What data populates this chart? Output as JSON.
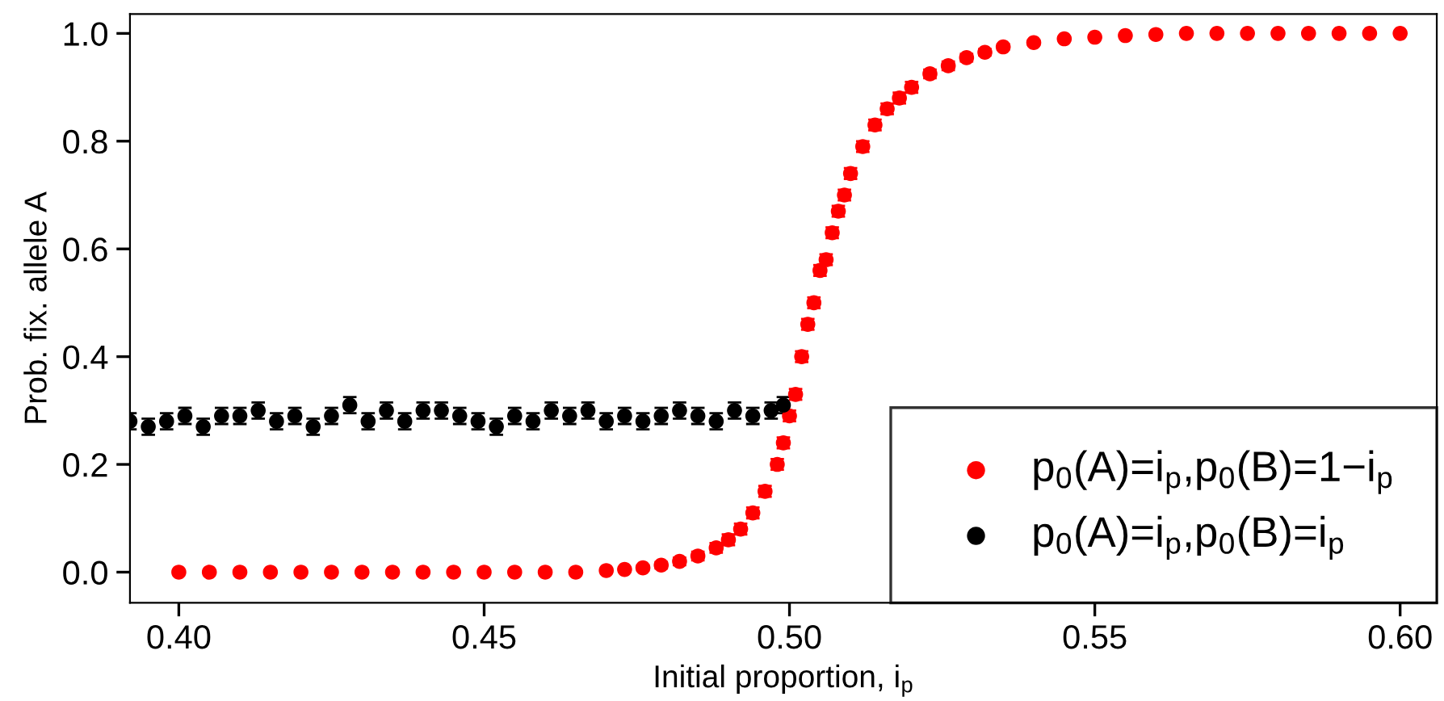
{
  "chart_data": {
    "type": "scatter",
    "xlabel": "Initial proportion, i$_{p}$",
    "ylabel": "Prob. fix. allele A",
    "xlim": [
      0.392,
      0.606
    ],
    "ylim": [
      -0.057,
      1.036
    ],
    "xticks": [
      {
        "value": 0.4,
        "label": "0.40"
      },
      {
        "value": 0.45,
        "label": "0.45"
      },
      {
        "value": 0.5,
        "label": "0.50"
      },
      {
        "value": 0.55,
        "label": "0.55"
      },
      {
        "value": 0.6,
        "label": "0.60"
      }
    ],
    "yticks": [
      {
        "value": 0.0,
        "label": "0.0"
      },
      {
        "value": 0.2,
        "label": "0.2"
      },
      {
        "value": 0.4,
        "label": "0.4"
      },
      {
        "value": 0.6,
        "label": "0.6"
      },
      {
        "value": 0.8,
        "label": "0.8"
      },
      {
        "value": 1.0,
        "label": "1.0"
      }
    ],
    "grid": false,
    "legend": "bottom right",
    "marker": "circle",
    "series": [
      {
        "name": "p$_{0}$(A)=i$_{p}$,p$_{0}$(B)=1−i$_{p}$",
        "color": "#ff0000",
        "x": [
          0.4,
          0.405,
          0.41,
          0.415,
          0.42,
          0.425,
          0.43,
          0.435,
          0.44,
          0.445,
          0.45,
          0.455,
          0.46,
          0.465,
          0.47,
          0.473,
          0.476,
          0.479,
          0.482,
          0.485,
          0.488,
          0.49,
          0.492,
          0.494,
          0.496,
          0.498,
          0.499,
          0.5,
          0.501,
          0.502,
          0.503,
          0.504,
          0.505,
          0.506,
          0.507,
          0.508,
          0.509,
          0.51,
          0.512,
          0.514,
          0.516,
          0.518,
          0.52,
          0.523,
          0.526,
          0.529,
          0.532,
          0.535,
          0.54,
          0.545,
          0.55,
          0.555,
          0.56,
          0.565,
          0.57,
          0.575,
          0.58,
          0.585,
          0.59,
          0.595,
          0.6
        ],
        "values": [
          0,
          0,
          0,
          0,
          0,
          0,
          0,
          0,
          0,
          0,
          0,
          0,
          0,
          0,
          0.003,
          0.005,
          0.008,
          0.013,
          0.02,
          0.03,
          0.045,
          0.06,
          0.08,
          0.11,
          0.15,
          0.2,
          0.24,
          0.29,
          0.33,
          0.4,
          0.46,
          0.5,
          0.56,
          0.58,
          0.63,
          0.67,
          0.7,
          0.74,
          0.79,
          0.83,
          0.86,
          0.88,
          0.9,
          0.925,
          0.94,
          0.955,
          0.965,
          0.975,
          0.983,
          0.99,
          0.993,
          0.996,
          0.998,
          1,
          1,
          1,
          1,
          1,
          1,
          1,
          1
        ],
        "errors": [
          0,
          0,
          0,
          0,
          0,
          0,
          0,
          0,
          0,
          0,
          0,
          0,
          0,
          0,
          0.003,
          0.004,
          0.005,
          0.006,
          0.007,
          0.008,
          0.009,
          0.01,
          0.01,
          0.01,
          0.01,
          0.01,
          0.01,
          0.01,
          0.01,
          0.01,
          0.01,
          0.01,
          0.01,
          0.01,
          0.01,
          0.01,
          0.01,
          0.01,
          0.01,
          0.01,
          0.01,
          0.01,
          0.01,
          0.008,
          0.008,
          0.007,
          0.006,
          0.005,
          0.004,
          0.003,
          0.003,
          0.002,
          0.002,
          0,
          0,
          0,
          0,
          0,
          0,
          0,
          0
        ]
      },
      {
        "name": "p$_{0}$(A)=i$_{p}$,p$_{0}$(B)=i$_{p}$",
        "color": "#000000",
        "x": [
          0.392,
          0.395,
          0.398,
          0.401,
          0.404,
          0.407,
          0.41,
          0.413,
          0.416,
          0.419,
          0.422,
          0.425,
          0.428,
          0.431,
          0.434,
          0.437,
          0.44,
          0.443,
          0.446,
          0.449,
          0.452,
          0.455,
          0.458,
          0.461,
          0.464,
          0.467,
          0.47,
          0.473,
          0.476,
          0.479,
          0.482,
          0.485,
          0.488,
          0.491,
          0.494,
          0.497,
          0.499
        ],
        "values": [
          0.28,
          0.27,
          0.28,
          0.29,
          0.27,
          0.29,
          0.29,
          0.3,
          0.28,
          0.29,
          0.27,
          0.29,
          0.31,
          0.28,
          0.3,
          0.28,
          0.3,
          0.3,
          0.29,
          0.28,
          0.27,
          0.29,
          0.28,
          0.3,
          0.29,
          0.3,
          0.28,
          0.29,
          0.28,
          0.29,
          0.3,
          0.29,
          0.28,
          0.3,
          0.29,
          0.3,
          0.31
        ],
        "errors": [
          0.015,
          0.015,
          0.015,
          0.015,
          0.015,
          0.015,
          0.015,
          0.015,
          0.015,
          0.015,
          0.015,
          0.015,
          0.015,
          0.015,
          0.015,
          0.015,
          0.015,
          0.015,
          0.015,
          0.015,
          0.015,
          0.015,
          0.015,
          0.015,
          0.015,
          0.015,
          0.015,
          0.015,
          0.015,
          0.015,
          0.015,
          0.015,
          0.015,
          0.015,
          0.015,
          0.015,
          0.015
        ]
      }
    ]
  }
}
